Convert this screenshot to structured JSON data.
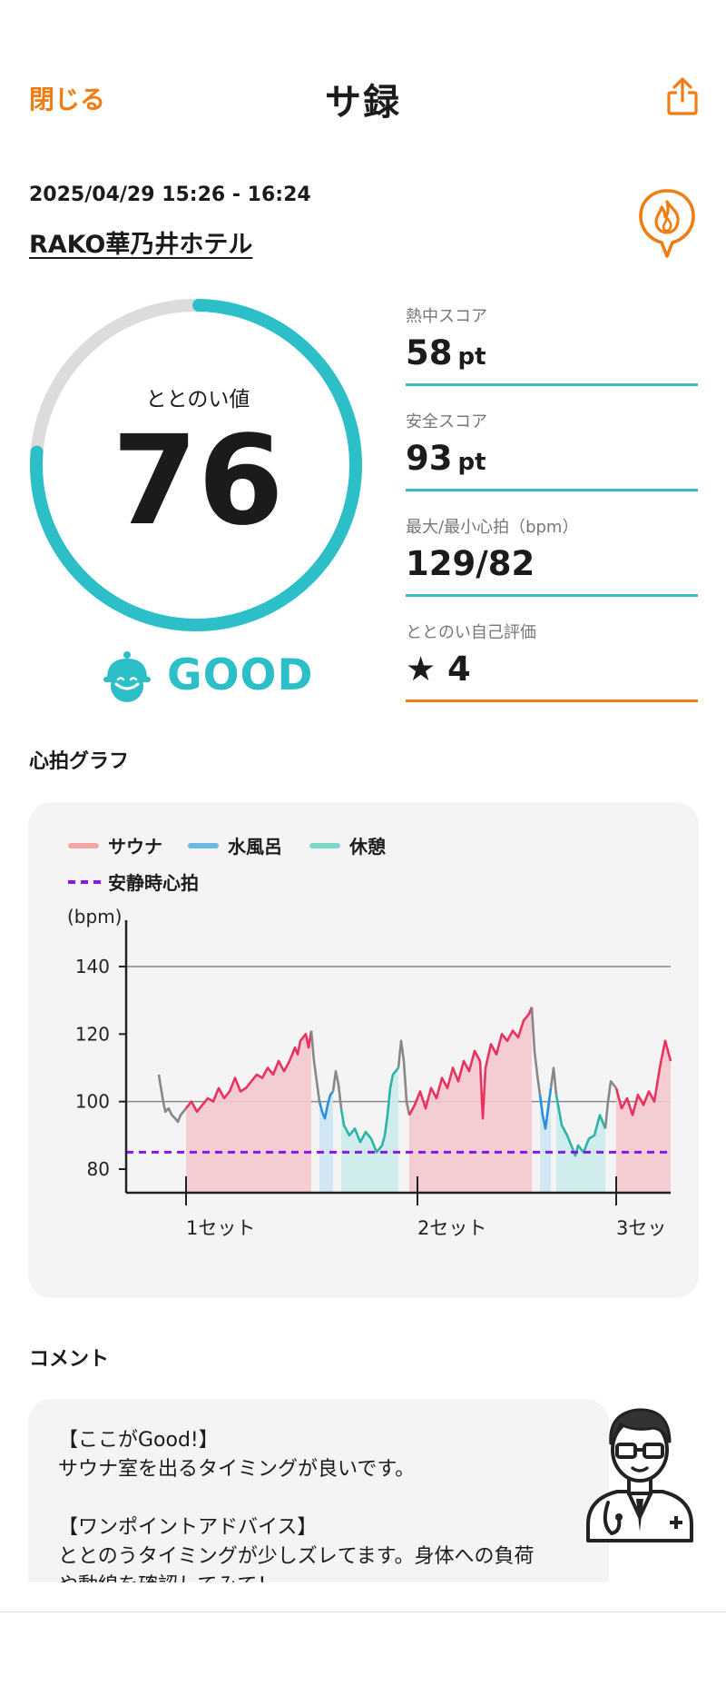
{
  "header": {
    "close_label": "閉じる",
    "title": "サ録",
    "share_icon": "share-icon"
  },
  "session": {
    "datetime": "2025/04/29 15:26 - 16:24",
    "facility": "RAKO華乃井ホテル",
    "facility_icon": "fire-pin-icon"
  },
  "score": {
    "label": "ととのい値",
    "value": "76",
    "gauge_fraction": 0.76,
    "rating": "GOOD",
    "rating_icon": "smiling-character-icon"
  },
  "stats": [
    {
      "label": "熱中スコア",
      "value": "58",
      "unit": "pt"
    },
    {
      "label": "安全スコア",
      "value": "93",
      "unit": "pt"
    },
    {
      "label": "最大/最小心拍（bpm）",
      "value": "129/82",
      "unit": ""
    },
    {
      "label": "ととのい自己評価",
      "value": "★ 4",
      "unit": ""
    }
  ],
  "colors": {
    "accent": "#ef7d12",
    "gauge": "#2dbfc8",
    "gauge_track": "#dcdcdc",
    "sauna": "#e8335f",
    "sauna_fill": "#f4c9cf",
    "mizuburo": "#2a8fdc",
    "mizuburo_fill": "#cde6f3",
    "rest": "#2ab5a8",
    "rest_fill": "#cdebec",
    "resting_hr": "#8a14f0"
  },
  "heart_graph": {
    "section_title": "心拍グラフ",
    "legend": [
      {
        "label": "サウナ",
        "color": "#f2a7a7"
      },
      {
        "label": "水風呂",
        "color": "#6ab8e4"
      },
      {
        "label": "休憩",
        "color": "#7fd6c9"
      }
    ],
    "resting_label": "安静時心拍"
  },
  "chart_data": {
    "type": "line",
    "ylabel": "(bpm)",
    "ylim": [
      73,
      147
    ],
    "yticks": [
      80,
      100,
      120,
      140
    ],
    "xlim": [
      0,
      1
    ],
    "xtick_positions": [
      0.11,
      0.535,
      0.9
    ],
    "xtick_labels": [
      "1セット",
      "2セット",
      "3セッ"
    ],
    "resting_hr": 85,
    "reference_line": 100,
    "grid_lines": [
      100,
      140
    ],
    "series": [
      {
        "phase": "other",
        "x": [
          0.06,
          0.064,
          0.068,
          0.072,
          0.078,
          0.084,
          0.09,
          0.095,
          0.1,
          0.105,
          0.11
        ],
        "y": [
          108,
          104,
          100,
          97,
          98,
          96,
          95,
          94,
          96,
          97,
          98
        ]
      },
      {
        "phase": "sauna",
        "x": [
          0.11,
          0.12,
          0.13,
          0.14,
          0.15,
          0.16,
          0.17,
          0.18,
          0.19,
          0.2,
          0.21,
          0.22,
          0.23,
          0.24,
          0.25,
          0.26,
          0.27,
          0.28,
          0.29,
          0.3,
          0.31,
          0.315,
          0.32,
          0.33,
          0.335,
          0.34
        ],
        "y": [
          98,
          100,
          97,
          99,
          101,
          100,
          104,
          101,
          103,
          107,
          103,
          104,
          106,
          108,
          107,
          110,
          108,
          112,
          109,
          112,
          116,
          114,
          118,
          120,
          116,
          121
        ]
      },
      {
        "phase": "other",
        "x": [
          0.34,
          0.345,
          0.35,
          0.355
        ],
        "y": [
          121,
          112,
          106,
          100
        ]
      },
      {
        "phase": "mizuburo",
        "x": [
          0.355,
          0.36,
          0.365,
          0.37,
          0.375,
          0.38
        ],
        "y": [
          100,
          97,
          95,
          99,
          102,
          103
        ]
      },
      {
        "phase": "other",
        "x": [
          0.38,
          0.385,
          0.39,
          0.395
        ],
        "y": [
          103,
          109,
          105,
          98
        ]
      },
      {
        "phase": "rest",
        "x": [
          0.395,
          0.4,
          0.41,
          0.42,
          0.43,
          0.44,
          0.45,
          0.46,
          0.47,
          0.475,
          0.48,
          0.485,
          0.49,
          0.5
        ],
        "y": [
          98,
          93,
          90,
          92,
          88,
          91,
          89,
          85,
          87,
          90,
          96,
          104,
          108,
          110
        ]
      },
      {
        "phase": "other",
        "x": [
          0.5,
          0.505,
          0.51,
          0.515,
          0.52
        ],
        "y": [
          110,
          118,
          112,
          100,
          96
        ]
      },
      {
        "phase": "sauna",
        "x": [
          0.52,
          0.53,
          0.54,
          0.55,
          0.56,
          0.57,
          0.58,
          0.59,
          0.6,
          0.61,
          0.62,
          0.63,
          0.64,
          0.65,
          0.655,
          0.66,
          0.67,
          0.68,
          0.69,
          0.7,
          0.71,
          0.72,
          0.73,
          0.74,
          0.745
        ],
        "y": [
          96,
          99,
          103,
          98,
          104,
          101,
          107,
          104,
          110,
          106,
          112,
          109,
          115,
          112,
          95,
          110,
          117,
          114,
          120,
          118,
          121,
          119,
          124,
          126,
          128
        ]
      },
      {
        "phase": "other",
        "x": [
          0.745,
          0.75,
          0.755,
          0.76
        ],
        "y": [
          128,
          115,
          108,
          102
        ]
      },
      {
        "phase": "mizuburo",
        "x": [
          0.76,
          0.765,
          0.77,
          0.775,
          0.78
        ],
        "y": [
          102,
          96,
          92,
          98,
          104
        ]
      },
      {
        "phase": "other",
        "x": [
          0.78,
          0.785,
          0.79
        ],
        "y": [
          104,
          110,
          102
        ]
      },
      {
        "phase": "rest",
        "x": [
          0.79,
          0.8,
          0.81,
          0.82,
          0.825,
          0.83,
          0.84,
          0.85,
          0.86,
          0.87,
          0.88
        ],
        "y": [
          102,
          93,
          90,
          86,
          84,
          87,
          85,
          89,
          90,
          96,
          92
        ]
      },
      {
        "phase": "other",
        "x": [
          0.88,
          0.885,
          0.89,
          0.9
        ],
        "y": [
          92,
          100,
          106,
          104
        ]
      },
      {
        "phase": "sauna",
        "x": [
          0.9,
          0.91,
          0.92,
          0.93,
          0.94,
          0.95,
          0.96,
          0.97,
          0.98,
          0.99,
          1.0
        ],
        "y": [
          104,
          98,
          101,
          96,
          102,
          99,
          103,
          100,
          110,
          118,
          112
        ]
      }
    ]
  },
  "comment": {
    "section_title": "コメント",
    "text": "【ここがGood!】\nサウナ室を出るタイミングが良いです。\n\n【ワンポイントアドバイス】\nととのうタイミングが少しズレてます。身体への負荷\nや動線を確認してみて！",
    "avatar_icon": "doctor-avatar-icon"
  }
}
